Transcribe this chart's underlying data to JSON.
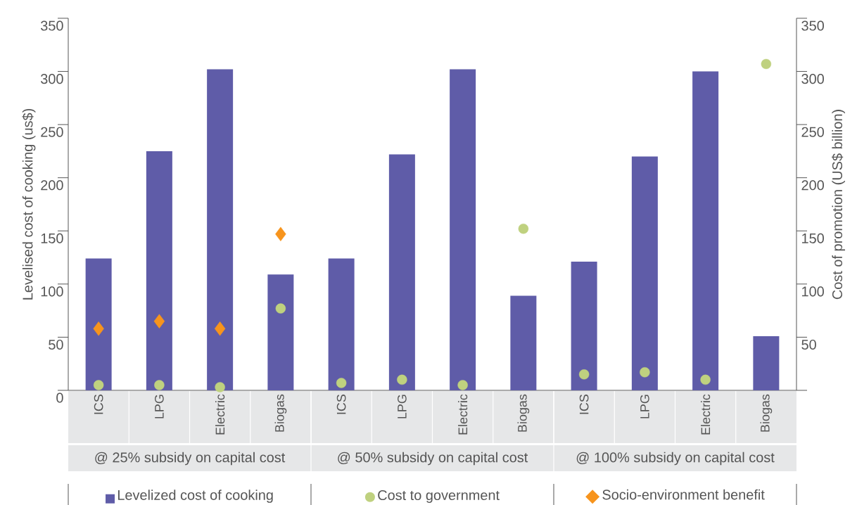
{
  "chart_data": {
    "type": "bar",
    "ylabel": "Levelised cost of cooking (us$)",
    "y2label": "Cost of promotion (US$ billion)",
    "categories": [
      "ICS",
      "LPG",
      "Electric",
      "Biogas",
      "ICS",
      "LPG",
      "Electric",
      "Biogas",
      "ICS",
      "LPG",
      "Electric",
      "Biogas"
    ],
    "series": [
      {
        "name": "Levelized cost of cooking",
        "color": "#5f5ca8",
        "values": [
          124,
          225,
          302,
          109,
          124,
          222,
          302,
          89,
          121,
          220,
          300,
          51
        ]
      },
      {
        "name": "Cost to government",
        "type": "scatter",
        "marker": "circle",
        "axis": "y2",
        "color": "#bfd17f",
        "values": [
          5,
          5,
          3,
          77,
          7,
          10,
          5,
          152,
          15,
          17,
          10,
          307
        ]
      },
      {
        "name": "Socio-environment benefit",
        "type": "scatter",
        "marker": "diamond",
        "axis": "y2",
        "color": "#f7941d",
        "values": [
          58,
          65,
          58,
          147,
          null,
          null,
          null,
          null,
          null,
          null,
          null,
          null
        ]
      }
    ],
    "ylim": [
      0,
      350
    ],
    "yticks": [
      0,
      50,
      100,
      150,
      200,
      250,
      300,
      350
    ],
    "y2lim": [
      0,
      350
    ],
    "y2ticks": [
      {
        "value": 0,
        "label": null
      },
      50,
      100,
      150,
      200,
      250,
      300,
      350
    ],
    "annotations": [
      "@ 25% subsidy on capital cost",
      "@ 50% subsidy on capital cost",
      "@ 100% subsidy on capital cost"
    ],
    "legend": "bottom"
  }
}
